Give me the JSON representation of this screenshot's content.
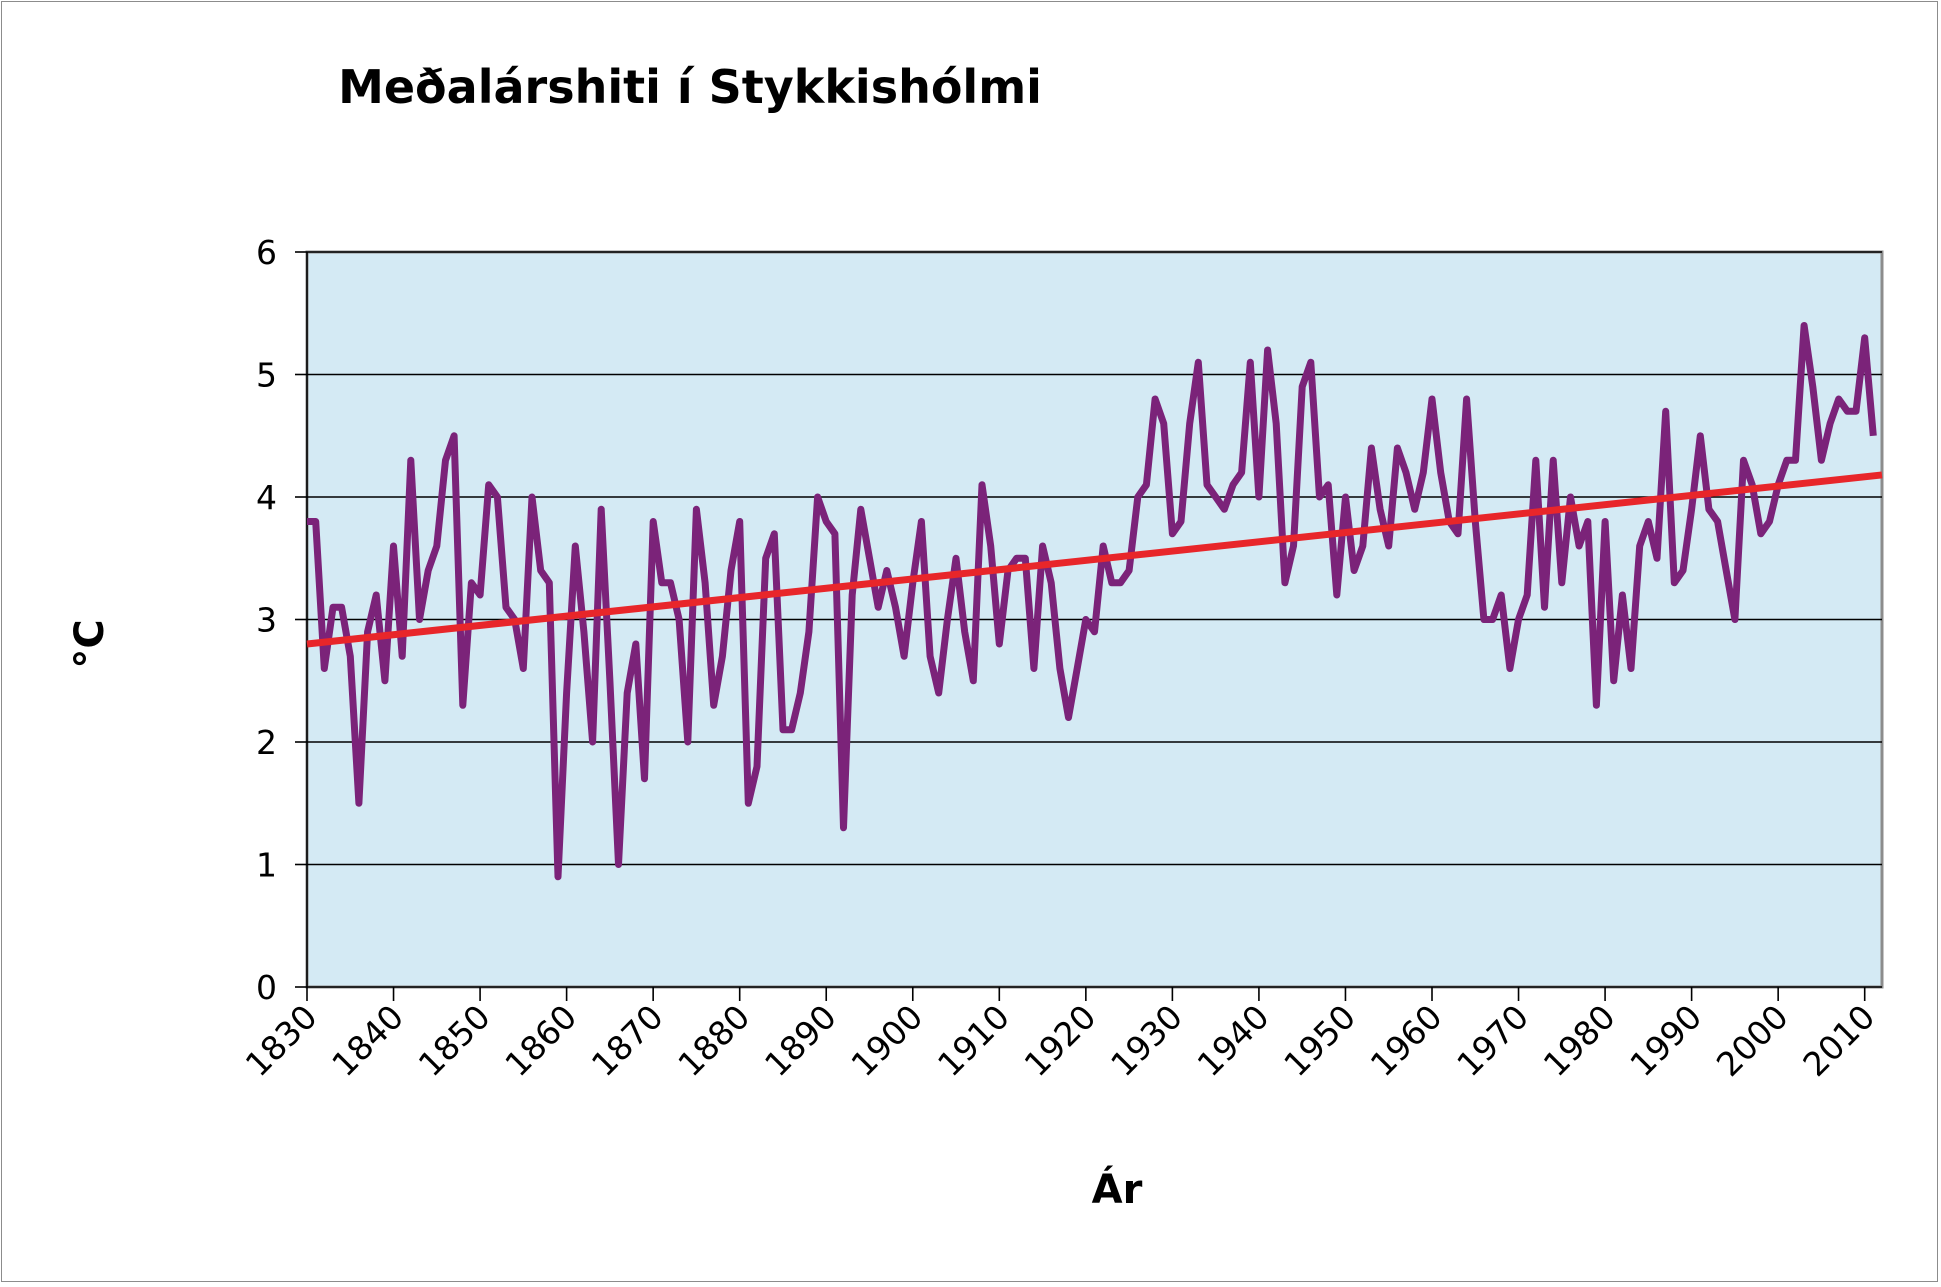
{
  "chart_data": {
    "type": "line",
    "title": "Meðalárshiti í Stykkishólmi",
    "xlabel": "Ár",
    "ylabel": "°C",
    "xlim": [
      1830,
      2012
    ],
    "ylim": [
      0,
      6
    ],
    "yticks": [
      "0",
      "1",
      "2",
      "3",
      "4",
      "5",
      "6"
    ],
    "xticks": [
      "1830",
      "1840",
      "1850",
      "1860",
      "1870",
      "1880",
      "1890",
      "1900",
      "1910",
      "1920",
      "1930",
      "1940",
      "1950",
      "1960",
      "1970",
      "1980",
      "1990",
      "2000",
      "2010"
    ],
    "grid": true,
    "legend": "none",
    "colors": {
      "plot_bg": "#d4eaf4",
      "series": "#7b2379",
      "trend": "#e8262a"
    },
    "series": [
      {
        "x": [
          1830,
          1831,
          1832,
          1833,
          1834,
          1835,
          1836,
          1837,
          1838,
          1839,
          1840,
          1841,
          1842,
          1843,
          1844,
          1845,
          1846,
          1847,
          1848,
          1849,
          1850,
          1851,
          1852,
          1853,
          1854,
          1855,
          1856,
          1857,
          1858,
          1859,
          1860,
          1861,
          1862,
          1863,
          1864,
          1865,
          1866,
          1867,
          1868,
          1869,
          1870,
          1871,
          1872,
          1873,
          1874,
          1875,
          1876,
          1877,
          1878,
          1879,
          1880,
          1881,
          1882,
          1883,
          1884,
          1885,
          1886,
          1887,
          1888,
          1889,
          1890,
          1891,
          1892,
          1893,
          1894,
          1895,
          1896,
          1897,
          1898,
          1899,
          1900,
          1901,
          1902,
          1903,
          1904,
          1905,
          1906,
          1907,
          1908,
          1909,
          1910,
          1911,
          1912,
          1913,
          1914,
          1915,
          1916,
          1917,
          1918,
          1919,
          1920,
          1921,
          1922,
          1923,
          1924,
          1925,
          1926,
          1927,
          1928,
          1929,
          1930,
          1931,
          1932,
          1933,
          1934,
          1935,
          1936,
          1937,
          1938,
          1939,
          1940,
          1941,
          1942,
          1943,
          1944,
          1945,
          1946,
          1947,
          1948,
          1949,
          1950,
          1951,
          1952,
          1953,
          1954,
          1955,
          1956,
          1957,
          1958,
          1959,
          1960,
          1961,
          1962,
          1963,
          1964,
          1965,
          1966,
          1967,
          1968,
          1969,
          1970,
          1971,
          1972,
          1973,
          1974,
          1975,
          1976,
          1977,
          1978,
          1979,
          1980,
          1981,
          1982,
          1983,
          1984,
          1985,
          1986,
          1987,
          1988,
          1989,
          1990,
          1991,
          1992,
          1993,
          1994,
          1995,
          1996,
          1997,
          1998,
          1999,
          2000,
          2001,
          2002,
          2003,
          2004,
          2005,
          2006,
          2007,
          2008,
          2009,
          2010,
          2011
        ],
        "values": [
          3.8,
          3.8,
          2.6,
          3.1,
          3.1,
          2.7,
          1.5,
          2.9,
          3.2,
          2.5,
          3.6,
          2.7,
          4.3,
          3.0,
          3.4,
          3.6,
          4.3,
          4.5,
          2.3,
          3.3,
          3.2,
          4.1,
          4.0,
          3.1,
          3.0,
          2.6,
          4.0,
          3.4,
          3.3,
          0.9,
          2.4,
          3.6,
          2.9,
          2.0,
          3.9,
          2.5,
          1.0,
          2.4,
          2.8,
          1.7,
          3.8,
          3.3,
          3.3,
          3.0,
          2.0,
          3.9,
          3.3,
          2.3,
          2.7,
          3.4,
          3.8,
          1.5,
          1.8,
          3.5,
          3.7,
          2.1,
          2.1,
          2.4,
          2.9,
          4.0,
          3.8,
          3.7,
          1.3,
          3.2,
          3.9,
          3.5,
          3.1,
          3.4,
          3.1,
          2.7,
          3.3,
          3.8,
          2.7,
          2.4,
          3.0,
          3.5,
          2.9,
          2.5,
          4.1,
          3.6,
          2.8,
          3.4,
          3.5,
          3.5,
          2.6,
          3.6,
          3.3,
          2.6,
          2.2,
          2.6,
          3.0,
          2.9,
          3.6,
          3.3,
          3.3,
          3.4,
          4.0,
          4.1,
          4.8,
          4.6,
          3.7,
          3.8,
          4.6,
          5.1,
          4.1,
          4.0,
          3.9,
          4.1,
          4.2,
          5.1,
          4.0,
          5.2,
          4.6,
          3.3,
          3.6,
          4.9,
          5.1,
          4.0,
          4.1,
          3.2,
          4.0,
          3.4,
          3.6,
          4.4,
          3.9,
          3.6,
          4.4,
          4.2,
          3.9,
          4.2,
          4.8,
          4.2,
          3.8,
          3.7,
          4.8,
          3.8,
          3.0,
          3.0,
          3.2,
          2.6,
          3.0,
          3.2,
          4.3,
          3.1,
          4.3,
          3.3,
          4.0,
          3.6,
          3.8,
          2.3,
          3.8,
          2.5,
          3.2,
          2.6,
          3.6,
          3.8,
          3.5,
          4.7,
          3.3,
          3.4,
          3.9,
          4.5,
          3.9,
          3.8,
          3.4,
          3.0,
          4.3,
          4.1,
          3.7,
          3.8,
          4.1,
          4.3,
          4.3,
          5.4,
          4.9,
          4.3,
          4.6,
          4.8,
          4.7,
          4.7,
          5.3,
          4.5
        ]
      }
    ],
    "trend": {
      "x": [
        1830,
        2012
      ],
      "y": [
        2.8,
        4.18
      ]
    }
  }
}
